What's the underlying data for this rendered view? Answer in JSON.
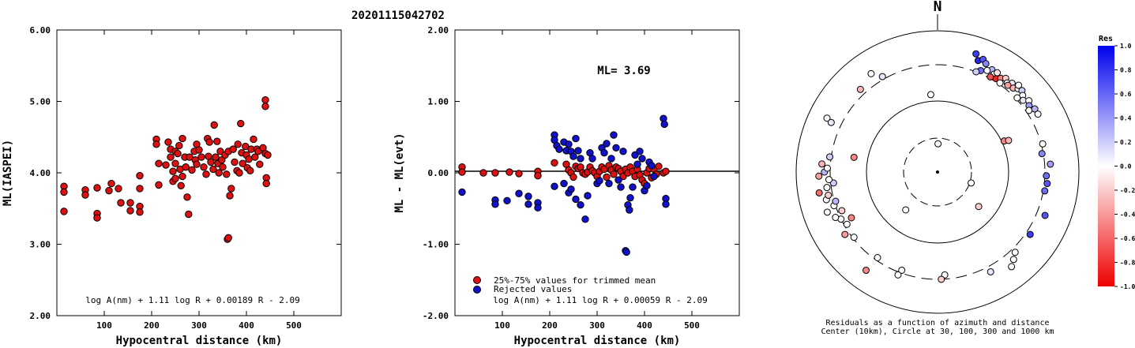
{
  "event_title": "20201115042702",
  "colors": {
    "accepted": "#dd1111",
    "rejected": "#1111cc",
    "outline": "#000000"
  },
  "chart_data": [
    {
      "type": "scatter",
      "name": "ml-vs-distance",
      "xlabel": "Hypocentral distance (km)",
      "ylabel": "ML(IASPEI)",
      "xlim": [
        0,
        600
      ],
      "ylim": [
        2.0,
        6.0
      ],
      "x_ticks": [
        "100",
        "200",
        "300",
        "400",
        "500"
      ],
      "y_ticks": [
        "2.00",
        "3.00",
        "4.00",
        "5.00",
        "6.00"
      ],
      "formula": "log A(nm) + 1.11 log R + 0.00189 R - 2.09",
      "grid": false,
      "points": [
        [
          15,
          3.81
        ],
        [
          15,
          3.73
        ],
        [
          15,
          3.46
        ],
        [
          60,
          3.76
        ],
        [
          60,
          3.69
        ],
        [
          85,
          3.79
        ],
        [
          85,
          3.43
        ],
        [
          85,
          3.37
        ],
        [
          110,
          3.75
        ],
        [
          115,
          3.85
        ],
        [
          130,
          3.78
        ],
        [
          135,
          3.58
        ],
        [
          155,
          3.58
        ],
        [
          155,
          3.47
        ],
        [
          175,
          3.96
        ],
        [
          175,
          3.78
        ],
        [
          175,
          3.53
        ],
        [
          175,
          3.45
        ],
        [
          210,
          4.47
        ],
        [
          210,
          4.4
        ],
        [
          215,
          4.13
        ],
        [
          215,
          3.83
        ],
        [
          230,
          4.11
        ],
        [
          235,
          4.43
        ],
        [
          240,
          4.33
        ],
        [
          240,
          4.22
        ],
        [
          245,
          4.02
        ],
        [
          245,
          3.88
        ],
        [
          250,
          4.3
        ],
        [
          250,
          4.13
        ],
        [
          250,
          3.92
        ],
        [
          255,
          4.27
        ],
        [
          258,
          4.38
        ],
        [
          260,
          4.05
        ],
        [
          262,
          3.82
        ],
        [
          265,
          4.48
        ],
        [
          265,
          3.95
        ],
        [
          270,
          4.22
        ],
        [
          272,
          4.08
        ],
        [
          275,
          3.66
        ],
        [
          278,
          3.42
        ],
        [
          280,
          4.22
        ],
        [
          285,
          4.04
        ],
        [
          290,
          4.3
        ],
        [
          292,
          4.18
        ],
        [
          295,
          4.4
        ],
        [
          295,
          4.12
        ],
        [
          300,
          4.32
        ],
        [
          305,
          4.22
        ],
        [
          310,
          4.08
        ],
        [
          315,
          3.98
        ],
        [
          318,
          4.48
        ],
        [
          320,
          4.23
        ],
        [
          322,
          4.43
        ],
        [
          325,
          4.15
        ],
        [
          330,
          4.05
        ],
        [
          332,
          4.67
        ],
        [
          335,
          4.22
        ],
        [
          338,
          4.44
        ],
        [
          340,
          4.13
        ],
        [
          342,
          4.0
        ],
        [
          345,
          4.3
        ],
        [
          348,
          4.18
        ],
        [
          350,
          4.08
        ],
        [
          355,
          4.25
        ],
        [
          358,
          3.98
        ],
        [
          360,
          3.07
        ],
        [
          362,
          3.09
        ],
        [
          362,
          4.3
        ],
        [
          365,
          3.68
        ],
        [
          368,
          3.78
        ],
        [
          372,
          4.33
        ],
        [
          375,
          4.15
        ],
        [
          380,
          4.03
        ],
        [
          382,
          4.4
        ],
        [
          385,
          4.0
        ],
        [
          388,
          4.69
        ],
        [
          390,
          4.28
        ],
        [
          392,
          4.13
        ],
        [
          398,
          4.37
        ],
        [
          400,
          4.25
        ],
        [
          402,
          4.07
        ],
        [
          405,
          4.19
        ],
        [
          408,
          4.03
        ],
        [
          410,
          4.33
        ],
        [
          415,
          4.47
        ],
        [
          418,
          4.22
        ],
        [
          422,
          4.33
        ],
        [
          425,
          4.3
        ],
        [
          428,
          4.12
        ],
        [
          435,
          4.35
        ],
        [
          440,
          5.02
        ],
        [
          440,
          4.93
        ],
        [
          440,
          4.27
        ],
        [
          442,
          3.93
        ],
        [
          442,
          3.85
        ],
        [
          445,
          4.25
        ]
      ]
    },
    {
      "type": "scatter",
      "name": "ml-residual-vs-distance",
      "xlabel": "Hypocentral distance (km)",
      "ylabel": "ML - ML(evt)",
      "xlim": [
        0,
        600
      ],
      "ylim": [
        -2.0,
        2.0
      ],
      "x_ticks": [
        "100",
        "200",
        "300",
        "400",
        "500"
      ],
      "y_ticks": [
        "-2.00",
        "-1.00",
        "0.00",
        "1.00",
        "2.00"
      ],
      "formula": "log A(nm) + 1.11 log R + 0.00059 R - 2.09",
      "annotation": "ML= 3.69",
      "legend": [
        "25%-75% values for trimmed mean",
        "Rejected values"
      ],
      "legend_position": "bottom-left",
      "accepted": [
        [
          15,
          0.08
        ],
        [
          15,
          0.01
        ],
        [
          60,
          0.0
        ],
        [
          85,
          0.0
        ],
        [
          115,
          0.01
        ],
        [
          135,
          -0.01
        ],
        [
          175,
          0.02
        ],
        [
          175,
          -0.04
        ],
        [
          210,
          0.14
        ],
        [
          235,
          0.12
        ],
        [
          240,
          0.04
        ],
        [
          245,
          0.0
        ],
        [
          250,
          -0.06
        ],
        [
          255,
          0.09
        ],
        [
          260,
          0.06
        ],
        [
          265,
          0.08
        ],
        [
          270,
          0.0
        ],
        [
          275,
          -0.02
        ],
        [
          280,
          0.01
        ],
        [
          285,
          0.08
        ],
        [
          290,
          0.03
        ],
        [
          295,
          0.0
        ],
        [
          300,
          -0.05
        ],
        [
          305,
          0.02
        ],
        [
          310,
          0.08
        ],
        [
          315,
          0.05
        ],
        [
          320,
          -0.06
        ],
        [
          325,
          0.1
        ],
        [
          330,
          0.04
        ],
        [
          335,
          -0.02
        ],
        [
          340,
          0.08
        ],
        [
          345,
          0.06
        ],
        [
          350,
          0.02
        ],
        [
          355,
          -0.05
        ],
        [
          360,
          0.05
        ],
        [
          365,
          0.0
        ],
        [
          370,
          0.08
        ],
        [
          375,
          0.02
        ],
        [
          380,
          -0.05
        ],
        [
          385,
          0.05
        ],
        [
          390,
          -0.03
        ],
        [
          395,
          -0.1
        ],
        [
          400,
          -0.15
        ],
        [
          405,
          0.0
        ],
        [
          410,
          0.06
        ],
        [
          415,
          -0.07
        ],
        [
          420,
          0.05
        ],
        [
          425,
          -0.02
        ],
        [
          430,
          0.09
        ],
        [
          440,
          0.0
        ],
        [
          445,
          0.02
        ]
      ],
      "rejected": [
        [
          15,
          -0.27
        ],
        [
          85,
          -0.38
        ],
        [
          85,
          -0.44
        ],
        [
          110,
          -0.39
        ],
        [
          135,
          -0.29
        ],
        [
          155,
          -0.33
        ],
        [
          155,
          -0.44
        ],
        [
          175,
          -0.42
        ],
        [
          175,
          -0.49
        ],
        [
          210,
          0.53
        ],
        [
          210,
          0.46
        ],
        [
          215,
          0.38
        ],
        [
          220,
          0.33
        ],
        [
          230,
          0.43
        ],
        [
          235,
          0.31
        ],
        [
          240,
          0.4
        ],
        [
          245,
          0.3
        ],
        [
          250,
          0.23
        ],
        [
          255,
          0.48
        ],
        [
          260,
          0.31
        ],
        [
          265,
          0.2
        ],
        [
          210,
          -0.19
        ],
        [
          230,
          -0.15
        ],
        [
          240,
          -0.28
        ],
        [
          245,
          -0.23
        ],
        [
          255,
          -0.37
        ],
        [
          265,
          -0.45
        ],
        [
          275,
          -0.65
        ],
        [
          280,
          -0.32
        ],
        [
          285,
          0.28
        ],
        [
          290,
          0.2
        ],
        [
          300,
          -0.15
        ],
        [
          305,
          -0.11
        ],
        [
          310,
          0.35
        ],
        [
          315,
          0.28
        ],
        [
          320,
          0.41
        ],
        [
          325,
          -0.15
        ],
        [
          330,
          0.2
        ],
        [
          335,
          0.53
        ],
        [
          340,
          0.35
        ],
        [
          345,
          -0.1
        ],
        [
          350,
          -0.2
        ],
        [
          355,
          0.3
        ],
        [
          360,
          -1.09
        ],
        [
          362,
          -1.11
        ],
        [
          365,
          -0.45
        ],
        [
          368,
          -0.52
        ],
        [
          370,
          -0.35
        ],
        [
          375,
          -0.2
        ],
        [
          380,
          0.25
        ],
        [
          385,
          0.12
        ],
        [
          390,
          0.3
        ],
        [
          395,
          0.2
        ],
        [
          400,
          -0.25
        ],
        [
          405,
          -0.18
        ],
        [
          410,
          0.15
        ],
        [
          415,
          0.1
        ],
        [
          420,
          -0.05
        ],
        [
          440,
          0.76
        ],
        [
          442,
          0.68
        ],
        [
          445,
          -0.36
        ],
        [
          445,
          -0.44
        ]
      ]
    },
    {
      "type": "scatter",
      "name": "residual-azimuth-map",
      "north_label": "N",
      "caption": [
        "Residuals as a function of azimuth and distance",
        "Center (10km), Circle at 30, 100, 300 and 1000 km"
      ],
      "colorbar_title": "Res",
      "colorbar_ticks": [
        "1.0",
        "0.8",
        "0.6",
        "0.4",
        "0.2",
        "0.0",
        "-0.2",
        "-0.4",
        "-0.6",
        "-0.8",
        "-1.0"
      ],
      "stations": [
        [
          1,
          0.2,
          0.0
        ],
        [
          108,
          0.25,
          0.0
        ],
        [
          130,
          0.38,
          -0.2
        ],
        [
          220,
          0.35,
          0.0
        ],
        [
          355,
          0.55,
          0.0
        ],
        [
          330,
          0.78,
          0.1
        ],
        [
          326,
          0.84,
          0.0
        ],
        [
          317,
          0.8,
          -0.3
        ],
        [
          296,
          0.87,
          0.0
        ],
        [
          295,
          0.83,
          0.1
        ],
        [
          20,
          0.84,
          0.9
        ],
        [
          22,
          0.86,
          0.7
        ],
        [
          18,
          0.88,
          0.8
        ],
        [
          24,
          0.84,
          0.5
        ],
        [
          28,
          0.82,
          0.3
        ],
        [
          30,
          0.8,
          0.0
        ],
        [
          32,
          0.78,
          -0.9
        ],
        [
          34,
          0.8,
          -0.5
        ],
        [
          36,
          0.82,
          -0.2
        ],
        [
          38,
          0.8,
          0.0
        ],
        [
          40,
          0.82,
          0.1
        ],
        [
          42,
          0.8,
          -0.3
        ],
        [
          44,
          0.82,
          0.0
        ],
        [
          46,
          0.83,
          0.2
        ],
        [
          48,
          0.81,
          0.0
        ],
        [
          50,
          0.79,
          0.1
        ],
        [
          52,
          0.82,
          0.0
        ],
        [
          54,
          0.8,
          0.4
        ],
        [
          56,
          0.78,
          0.0
        ],
        [
          57,
          0.82,
          0.3
        ],
        [
          26,
          0.8,
          0.0
        ],
        [
          23,
          0.78,
          0.6
        ],
        [
          21,
          0.76,
          0.2
        ],
        [
          29,
          0.77,
          -0.7
        ],
        [
          31,
          0.82,
          -0.1
        ],
        [
          35,
          0.77,
          0.0
        ],
        [
          39,
          0.79,
          -0.4
        ],
        [
          43,
          0.84,
          0.0
        ],
        [
          47,
          0.77,
          0.0
        ],
        [
          60,
          0.82,
          0.0
        ],
        [
          65,
          0.52,
          -0.5
        ],
        [
          66,
          0.55,
          -0.3
        ],
        [
          75,
          0.77,
          0.0
        ],
        [
          80,
          0.75,
          0.5
        ],
        [
          86,
          0.8,
          0.4
        ],
        [
          92,
          0.77,
          0.6
        ],
        [
          96,
          0.78,
          0.7
        ],
        [
          100,
          0.77,
          0.6
        ],
        [
          112,
          0.82,
          0.7
        ],
        [
          124,
          0.79,
          0.8
        ],
        [
          136,
          0.79,
          0.0
        ],
        [
          139,
          0.82,
          0.0
        ],
        [
          142,
          0.85,
          0.0
        ],
        [
          152,
          0.8,
          0.1
        ],
        [
          176,
          0.73,
          0.0
        ],
        [
          178,
          0.76,
          -0.2
        ],
        [
          200,
          0.74,
          0.0
        ],
        [
          201,
          0.78,
          0.0
        ],
        [
          215,
          0.74,
          0.0
        ],
        [
          216,
          0.86,
          -0.5
        ],
        [
          232,
          0.75,
          0.0
        ],
        [
          236,
          0.79,
          -0.4
        ],
        [
          240,
          0.74,
          0.0
        ],
        [
          242,
          0.69,
          -0.5
        ],
        [
          244,
          0.76,
          0.0
        ],
        [
          246,
          0.79,
          0.0
        ],
        [
          248,
          0.73,
          -0.2
        ],
        [
          250,
          0.83,
          0.0
        ],
        [
          252,
          0.77,
          0.0
        ],
        [
          254,
          0.75,
          0.3
        ],
        [
          256,
          0.81,
          0.0
        ],
        [
          258,
          0.79,
          -0.2
        ],
        [
          260,
          0.85,
          -0.6
        ],
        [
          262,
          0.79,
          0.0
        ],
        [
          264,
          0.74,
          0.2
        ],
        [
          266,
          0.77,
          0.0
        ],
        [
          268,
          0.84,
          -0.4
        ],
        [
          270,
          0.8,
          0.3
        ],
        [
          272,
          0.78,
          0.0
        ],
        [
          274,
          0.82,
          -0.3
        ],
        [
          278,
          0.77,
          0.2
        ],
        [
          280,
          0.6,
          -0.5
        ]
      ]
    }
  ]
}
